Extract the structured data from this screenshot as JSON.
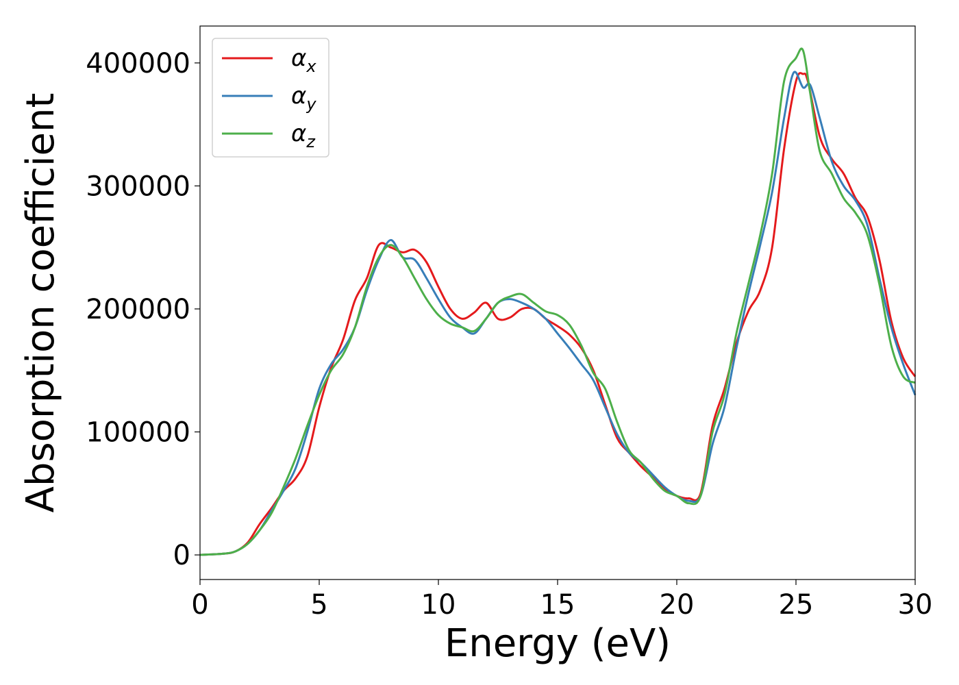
{
  "chart_data": {
    "type": "line",
    "xlabel": "Energy (eV)",
    "ylabel": "Absorption coefficient",
    "xlim": [
      0,
      30
    ],
    "ylim": [
      -20000,
      430000
    ],
    "xticks": [
      0,
      5,
      10,
      15,
      20,
      25,
      30
    ],
    "yticks": [
      0,
      100000,
      200000,
      300000,
      400000
    ],
    "grid": false,
    "legend_position": "top-left",
    "series": [
      {
        "name": "α",
        "name_subscript": "x",
        "color": "#e41a1c",
        "x": [
          0,
          1,
          1.5,
          2,
          2.5,
          3,
          3.5,
          4,
          4.5,
          5,
          5.5,
          6,
          6.5,
          7,
          7.5,
          8,
          8.5,
          9,
          9.5,
          10,
          10.5,
          11,
          11.5,
          12,
          12.5,
          13,
          13.5,
          14,
          14.5,
          15,
          15.5,
          16,
          16.5,
          17,
          17.5,
          18,
          18.5,
          19,
          19.5,
          20,
          20.5,
          21,
          21.5,
          22,
          22.5,
          23,
          23.5,
          24,
          24.5,
          25,
          25.3,
          25.5,
          26,
          26.5,
          27,
          27.5,
          28,
          28.5,
          29,
          29.5,
          30
        ],
        "y": [
          0,
          1000,
          3000,
          10000,
          25000,
          38000,
          52000,
          62000,
          80000,
          120000,
          152000,
          175000,
          207000,
          225000,
          252000,
          250000,
          246000,
          248000,
          238000,
          218000,
          200000,
          192000,
          197000,
          205000,
          192000,
          193000,
          200000,
          200000,
          192000,
          186000,
          179000,
          168000,
          150000,
          122000,
          95000,
          83000,
          72000,
          63000,
          53000,
          48000,
          46000,
          50000,
          105000,
          135000,
          172000,
          198000,
          215000,
          250000,
          330000,
          385000,
          391000,
          385000,
          340000,
          322000,
          310000,
          290000,
          275000,
          240000,
          190000,
          160000,
          145000
        ]
      },
      {
        "name": "α",
        "name_subscript": "y",
        "color": "#377eb8",
        "x": [
          0,
          1,
          1.5,
          2,
          2.5,
          3,
          3.5,
          4,
          4.5,
          5,
          5.5,
          6,
          6.5,
          7,
          7.5,
          8,
          8.5,
          9,
          9.5,
          10,
          10.5,
          11,
          11.5,
          12,
          12.5,
          13,
          13.5,
          14,
          14.5,
          15,
          15.5,
          16,
          16.5,
          17,
          17.5,
          18,
          18.5,
          19,
          19.5,
          20,
          20.5,
          21,
          21.5,
          22,
          22.5,
          23,
          23.5,
          24,
          24.5,
          24.9,
          25.3,
          25.6,
          26,
          26.5,
          27,
          27.5,
          28,
          28.5,
          29,
          29.5,
          30
        ],
        "y": [
          0,
          1000,
          3000,
          9000,
          20000,
          36000,
          52000,
          70000,
          100000,
          135000,
          155000,
          167000,
          185000,
          215000,
          240000,
          256000,
          242000,
          240000,
          225000,
          208000,
          193000,
          185000,
          180000,
          192000,
          205000,
          208000,
          205000,
          200000,
          192000,
          180000,
          168000,
          155000,
          142000,
          120000,
          98000,
          83000,
          75000,
          65000,
          55000,
          48000,
          44000,
          48000,
          90000,
          120000,
          168000,
          212000,
          252000,
          295000,
          355000,
          392000,
          380000,
          382000,
          355000,
          320000,
          300000,
          288000,
          268000,
          225000,
          185000,
          155000,
          130000
        ]
      },
      {
        "name": "α",
        "name_subscript": "z",
        "color": "#4daf4a",
        "x": [
          0,
          1,
          1.5,
          2,
          2.5,
          3,
          3.5,
          4,
          4.5,
          5,
          5.5,
          6,
          6.5,
          7,
          7.5,
          8,
          8.5,
          9,
          9.5,
          10,
          10.5,
          11,
          11.5,
          12,
          12.5,
          13,
          13.5,
          14,
          14.5,
          15,
          15.5,
          16,
          16.5,
          17,
          17.5,
          18,
          18.5,
          19,
          19.5,
          20,
          20.5,
          21,
          21.5,
          22,
          22.5,
          23,
          23.5,
          24,
          24.5,
          25,
          25.3,
          25.6,
          26,
          26.5,
          27,
          27.5,
          28,
          28.5,
          29,
          29.5,
          30
        ],
        "y": [
          0,
          1000,
          3000,
          9000,
          20000,
          34000,
          55000,
          78000,
          105000,
          130000,
          150000,
          163000,
          185000,
          218000,
          242000,
          252000,
          242000,
          225000,
          208000,
          195000,
          188000,
          185000,
          182000,
          192000,
          205000,
          210000,
          212000,
          205000,
          198000,
          195000,
          187000,
          170000,
          148000,
          135000,
          108000,
          85000,
          75000,
          62000,
          52000,
          48000,
          42000,
          48000,
          100000,
          130000,
          180000,
          220000,
          260000,
          310000,
          385000,
          404000,
          410000,
          375000,
          328000,
          310000,
          290000,
          278000,
          260000,
          220000,
          170000,
          145000,
          140000
        ]
      }
    ]
  }
}
